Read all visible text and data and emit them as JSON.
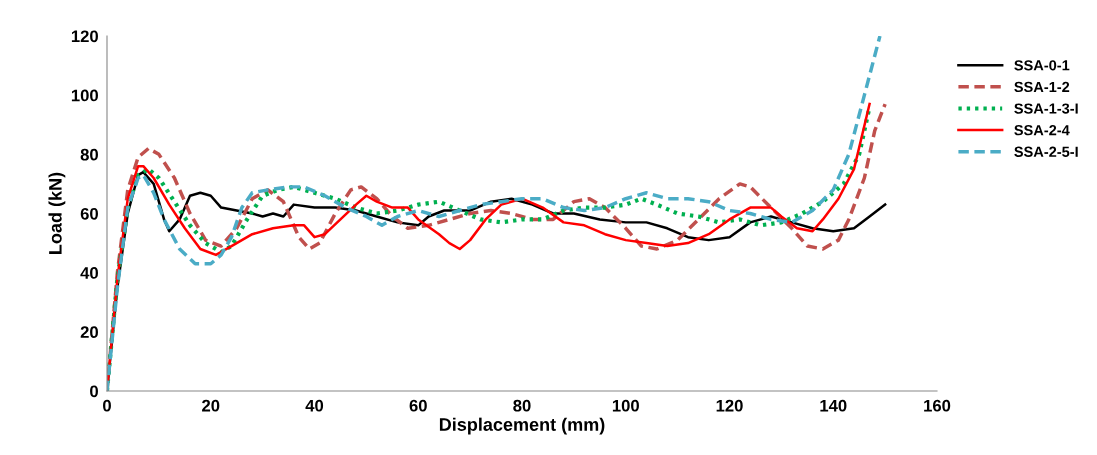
{
  "chart_data": {
    "type": "line",
    "xlabel": "Displacement (mm)",
    "ylabel": "Load (kN)",
    "xlim": [
      0,
      160
    ],
    "xticks": [
      0,
      20,
      40,
      60,
      80,
      100,
      120,
      140,
      160
    ],
    "ylim": [
      0,
      120
    ],
    "yticks": [
      0,
      20,
      40,
      60,
      80,
      100,
      120
    ],
    "grid": false,
    "legend": "right",
    "marker": "none",
    "series": [
      {
        "name": "SSA-0-1",
        "color": "#000000",
        "line_style": "solid",
        "x": [
          0,
          2,
          4,
          6,
          7,
          9,
          11,
          12,
          14,
          16,
          18,
          20,
          22,
          25,
          28,
          30,
          32,
          34,
          36,
          40,
          44,
          48,
          52,
          56,
          60,
          62,
          65,
          70,
          74,
          78,
          82,
          86,
          90,
          95,
          100,
          104,
          108,
          112,
          116,
          120,
          124,
          128,
          132,
          136,
          140,
          144,
          147,
          150
        ],
        "values": [
          0,
          35,
          60,
          73,
          74,
          70,
          58,
          54,
          58,
          66,
          67,
          66,
          62,
          61,
          60,
          59,
          60,
          59,
          63,
          62,
          62,
          61,
          59,
          57,
          56,
          59,
          61,
          61,
          64,
          65,
          63,
          60,
          60,
          58,
          57,
          57,
          55,
          52,
          51,
          52,
          57,
          59,
          57,
          55,
          54,
          55,
          59,
          63
        ]
      },
      {
        "name": "SSA-1-2",
        "color": "#c0504d",
        "line_style": "dashed",
        "x": [
          0,
          2,
          4,
          6,
          8,
          10,
          13,
          16,
          19,
          22,
          25,
          28,
          31,
          34,
          37,
          39,
          41,
          44,
          47,
          49,
          52,
          55,
          58,
          62,
          66,
          70,
          74,
          78,
          82,
          86,
          90,
          93,
          96,
          100,
          103,
          106,
          110,
          114,
          118,
          122,
          124,
          128,
          132,
          135,
          138,
          141,
          143,
          146,
          148,
          150
        ],
        "values": [
          0,
          40,
          68,
          79,
          82,
          80,
          72,
          60,
          51,
          49,
          55,
          65,
          68,
          64,
          52,
          48,
          50,
          60,
          68,
          69,
          65,
          59,
          55,
          56,
          58,
          60,
          61,
          60,
          58,
          58,
          64,
          65,
          62,
          55,
          49,
          48,
          51,
          58,
          65,
          70,
          69,
          62,
          55,
          49,
          48,
          51,
          58,
          72,
          88,
          97
        ]
      },
      {
        "name": "SSA-1-3-I",
        "color": "#00b050",
        "line_style": "dotted",
        "x": [
          0,
          2,
          4,
          6,
          8,
          10,
          13,
          16,
          19,
          22,
          24,
          27,
          30,
          33,
          36,
          40,
          44,
          48,
          52,
          56,
          60,
          64,
          68,
          72,
          76,
          80,
          84,
          88,
          92,
          96,
          100,
          103,
          106,
          110,
          114,
          118,
          122,
          126,
          130,
          134,
          138,
          142,
          145,
          147
        ],
        "values": [
          0,
          38,
          62,
          73,
          75,
          72,
          64,
          56,
          50,
          47,
          49,
          58,
          66,
          68,
          69,
          67,
          65,
          62,
          60,
          61,
          63,
          64,
          61,
          58,
          57,
          58,
          58,
          61,
          62,
          62,
          63,
          65,
          63,
          60,
          59,
          57,
          58,
          56,
          57,
          60,
          64,
          70,
          80,
          96
        ]
      },
      {
        "name": "SSA-2-4",
        "color": "#ff0000",
        "line_style": "solid",
        "x": [
          0,
          2,
          4,
          6,
          7,
          9,
          12,
          15,
          18,
          21,
          24,
          28,
          32,
          36,
          38,
          40,
          42,
          45,
          48,
          50,
          52,
          55,
          58,
          60,
          64,
          66,
          68,
          70,
          73,
          76,
          80,
          84,
          88,
          92,
          96,
          100,
          104,
          108,
          112,
          116,
          120,
          124,
          128,
          130,
          133,
          136,
          138,
          141,
          144,
          147
        ],
        "values": [
          0,
          38,
          65,
          76,
          76,
          72,
          63,
          55,
          48,
          46,
          49,
          53,
          55,
          56,
          56,
          52,
          53,
          58,
          63,
          66,
          64,
          62,
          62,
          58,
          53,
          50,
          48,
          51,
          58,
          63,
          65,
          62,
          57,
          56,
          53,
          51,
          50,
          49,
          50,
          53,
          58,
          62,
          62,
          59,
          55,
          54,
          58,
          65,
          75,
          97
        ]
      },
      {
        "name": "SSA-2-5-I",
        "color": "#4bacc6",
        "line_style": "dashed",
        "x": [
          0,
          2,
          4,
          6,
          7,
          9,
          11,
          14,
          17,
          20,
          22,
          24,
          26,
          28,
          31,
          35,
          38,
          42,
          46,
          50,
          53,
          56,
          60,
          64,
          68,
          72,
          76,
          80,
          84,
          88,
          92,
          96,
          100,
          104,
          108,
          112,
          116,
          120,
          124,
          128,
          132,
          136,
          140,
          143,
          146,
          149
        ],
        "values": [
          0,
          35,
          62,
          72,
          73,
          67,
          58,
          48,
          43,
          43,
          46,
          52,
          62,
          67,
          68,
          69,
          69,
          66,
          62,
          59,
          56,
          59,
          61,
          59,
          61,
          63,
          64,
          65,
          65,
          62,
          61,
          62,
          65,
          67,
          65,
          65,
          64,
          61,
          60,
          58,
          57,
          61,
          68,
          80,
          100,
          120
        ]
      }
    ]
  }
}
